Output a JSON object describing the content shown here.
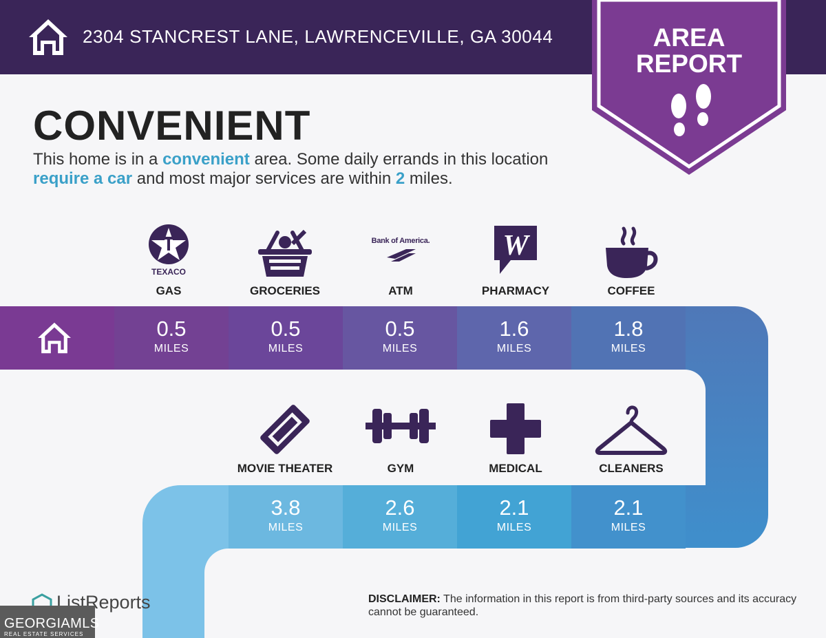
{
  "header": {
    "address": "2304 STANCREST LANE, LAWRENCEVILLE, GA 30044",
    "bg_color": "#3a2558",
    "home_icon": "house-icon"
  },
  "badge": {
    "line1": "AREA",
    "line2": "REPORT",
    "icon": "footprints-icon",
    "color": "#7b3b92"
  },
  "main": {
    "title": "CONVENIENT",
    "desc_part1": "This home is in a ",
    "desc_hl1": "convenient",
    "desc_part2": " area. Some daily errands in this location ",
    "desc_hl2": "require a car",
    "desc_part3": " and most major services are within ",
    "desc_hl3": "2",
    "desc_part4": " miles.",
    "highlight_color": "#3aa0c8"
  },
  "row1": [
    {
      "label": "GAS",
      "value": "0.5",
      "unit": "MILES",
      "logo_text": "TEXACO",
      "icon": "texaco-star-icon",
      "color": "#734193"
    },
    {
      "label": "GROCERIES",
      "value": "0.5",
      "unit": "MILES",
      "icon": "grocery-basket-icon",
      "color": "#6b469a"
    },
    {
      "label": "ATM",
      "value": "0.5",
      "unit": "MILES",
      "logo_text": "Bank of America.",
      "icon": "bank-of-america-icon",
      "color": "#6756a1"
    },
    {
      "label": "PHARMACY",
      "value": "1.6",
      "unit": "MILES",
      "icon": "walgreens-icon",
      "color": "#5e66ac"
    },
    {
      "label": "COFFEE",
      "value": "1.8",
      "unit": "MILES",
      "icon": "coffee-cup-icon",
      "color": "#5173b4"
    }
  ],
  "row2": [
    {
      "label": "MOVIE THEATER",
      "value": "3.8",
      "unit": "MILES",
      "icon": "ticket-icon",
      "color": "#6cb8e0"
    },
    {
      "label": "GYM",
      "value": "2.6",
      "unit": "MILES",
      "icon": "dumbbell-icon",
      "color": "#55aed9"
    },
    {
      "label": "MEDICAL",
      "value": "2.1",
      "unit": "MILES",
      "icon": "medical-cross-icon",
      "color": "#42a3d4"
    },
    {
      "label": "CLEANERS",
      "value": "2.1",
      "unit": "MILES",
      "icon": "clothes-hanger-icon",
      "color": "#4291cc"
    }
  ],
  "footer": {
    "brand": "ListReports",
    "disclaimer_label": "DISCLAIMER:",
    "disclaimer_text": " The information in this report is from third-party sources and its accuracy cannot be guaranteed.",
    "watermark_main": "GEORGIAMLS",
    "watermark_sub": "REAL ESTATE SERVICES"
  }
}
